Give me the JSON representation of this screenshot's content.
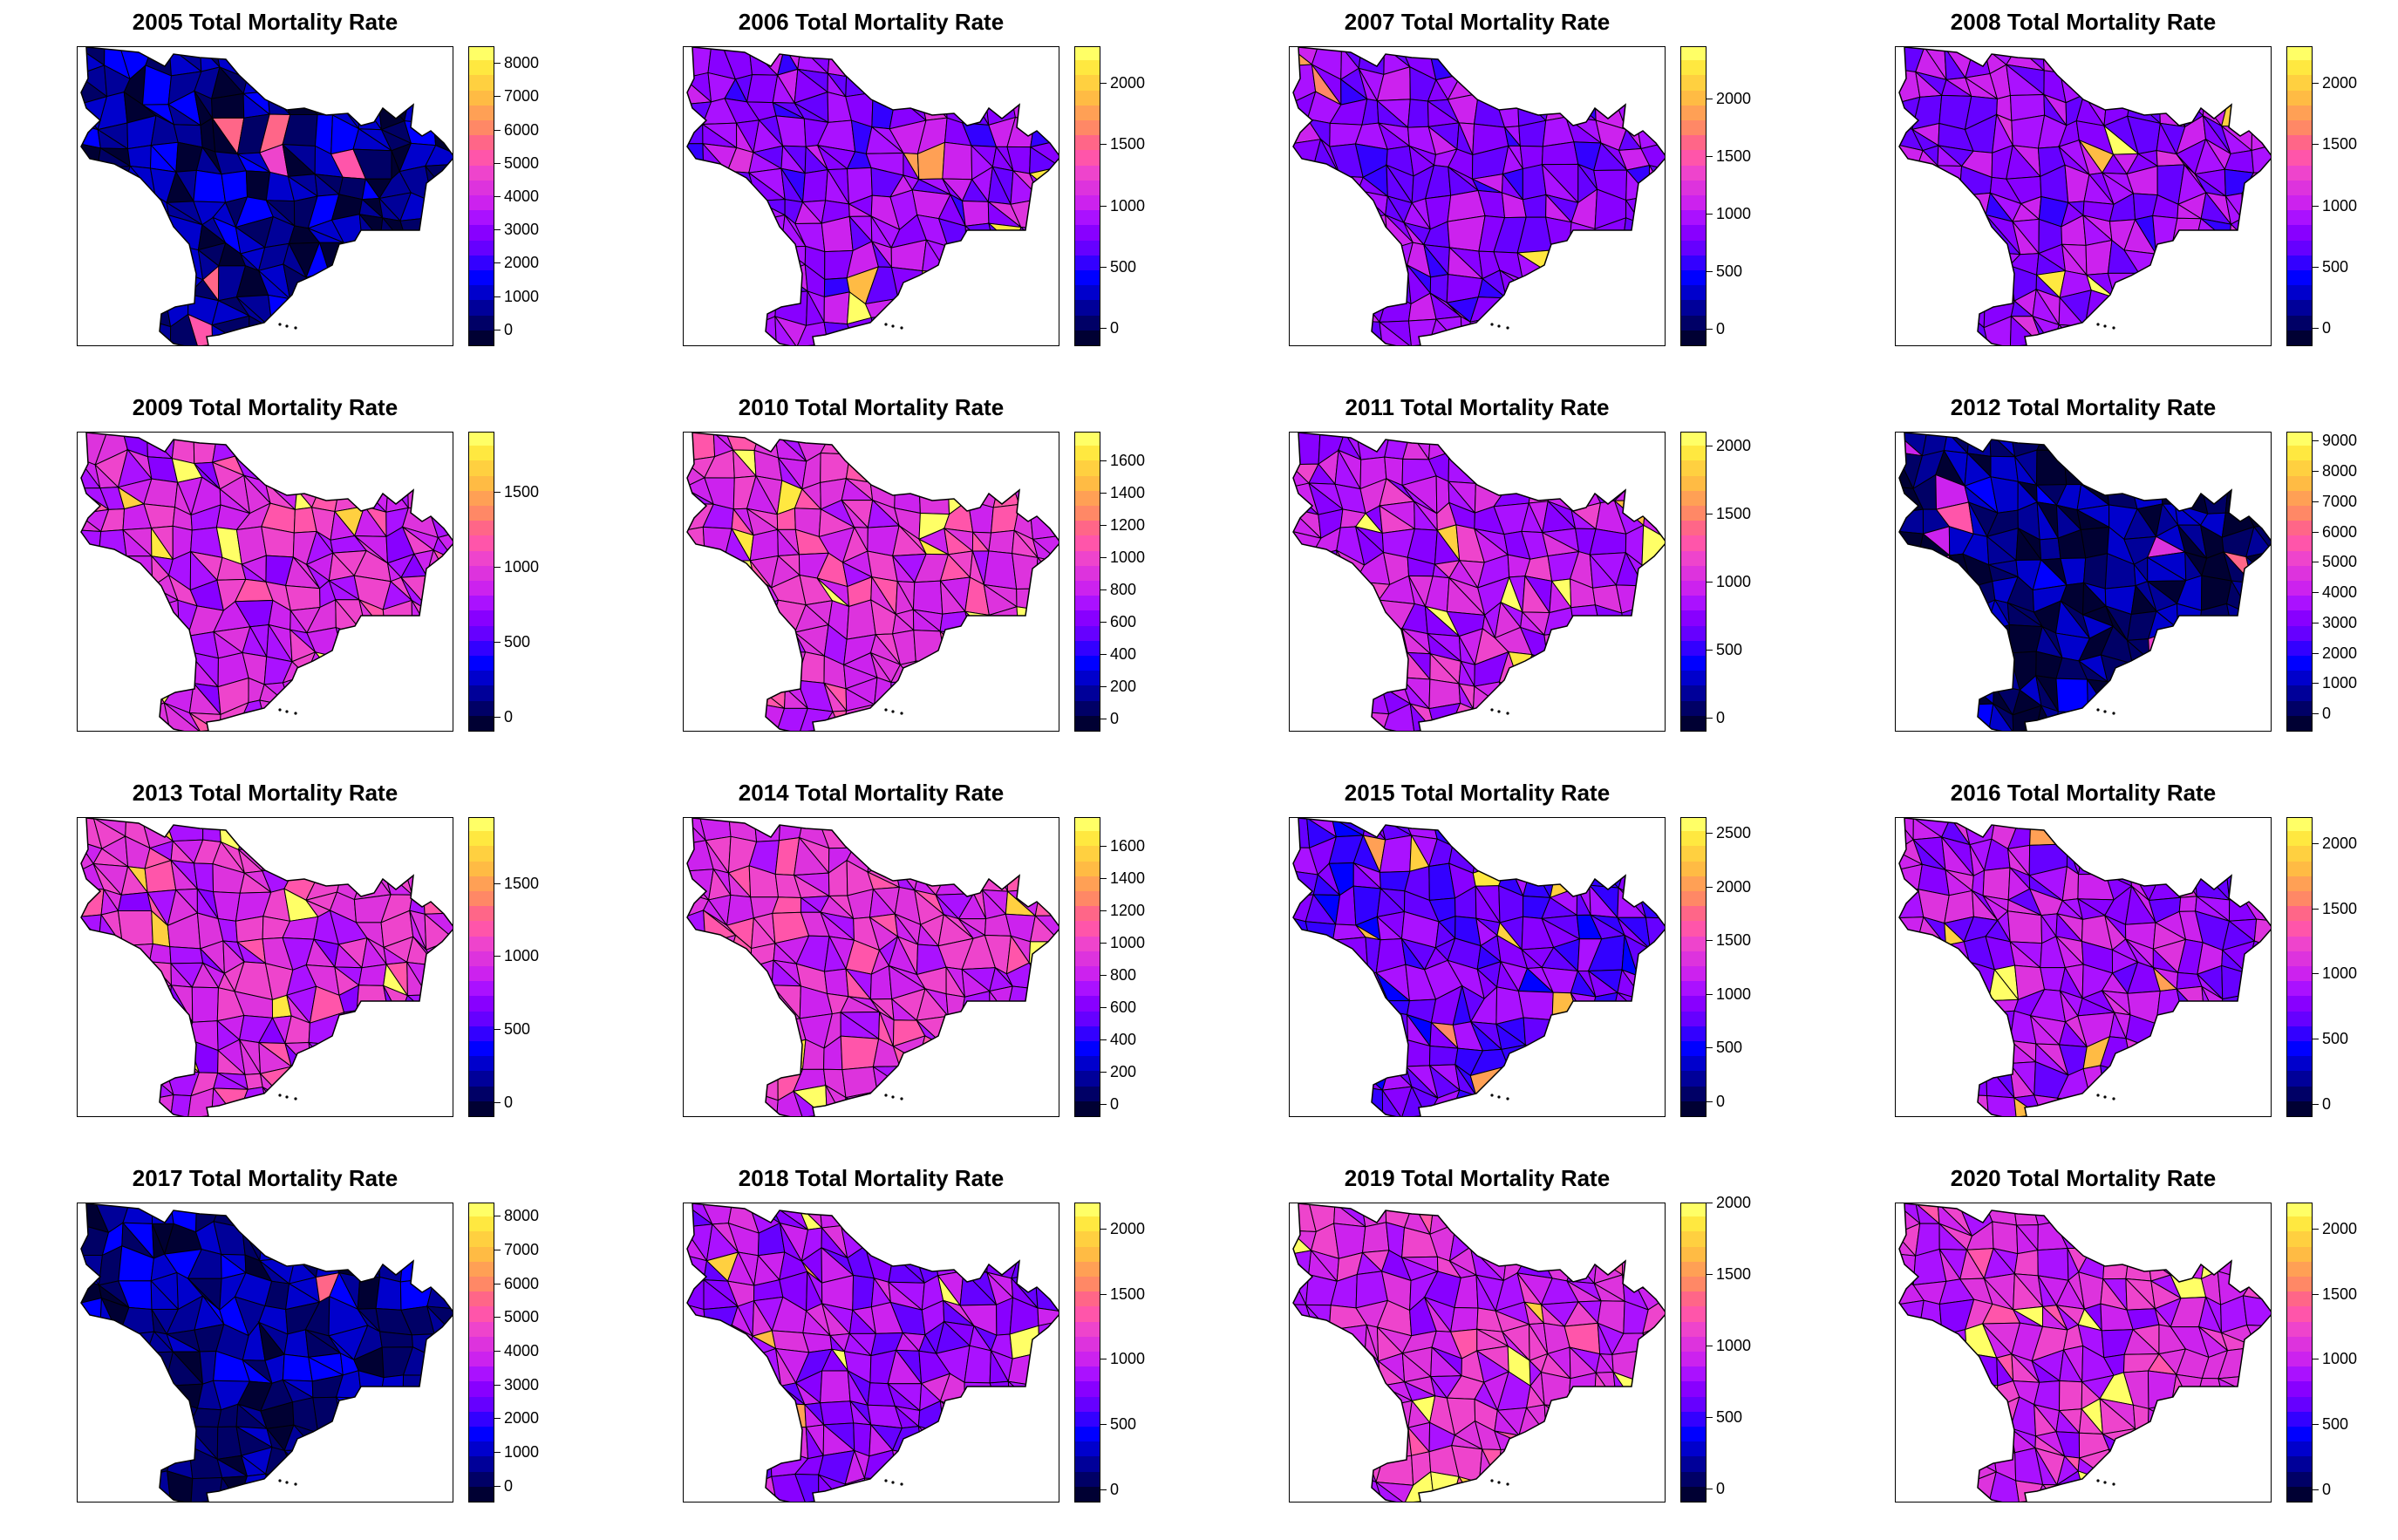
{
  "palette": [
    "#000033",
    "#000066",
    "#000099",
    "#0000CC",
    "#0000FF",
    "#3300FF",
    "#6600FF",
    "#8800FF",
    "#AA11FF",
    "#CC22EE",
    "#DD33DD",
    "#EE44CC",
    "#FF55AA",
    "#FF6688",
    "#FF8866",
    "#FFA055",
    "#FFBB44",
    "#FFD040",
    "#FFE840",
    "#FFFF66"
  ],
  "panels": [
    {
      "title": "2005 Total Mortality Rate",
      "range": [
        -500,
        8500
      ],
      "ticks": [
        "0",
        "1000",
        "2000",
        "3000",
        "4000",
        "5000",
        "6000",
        "7000",
        "8000"
      ],
      "level": 0.12
    },
    {
      "title": "2006 Total Mortality Rate",
      "range": [
        -150,
        2300
      ],
      "ticks": [
        "0",
        "500",
        "1000",
        "1500",
        "2000"
      ],
      "level": 0.4
    },
    {
      "title": "2007 Total Mortality Rate",
      "range": [
        -150,
        2450
      ],
      "ticks": [
        "0",
        "500",
        "1000",
        "1500",
        "2000"
      ],
      "level": 0.38
    },
    {
      "title": "2008 Total Mortality Rate",
      "range": [
        -150,
        2300
      ],
      "ticks": [
        "0",
        "500",
        "1000",
        "1500",
        "2000"
      ],
      "level": 0.4
    },
    {
      "title": "2009 Total Mortality Rate",
      "range": [
        -100,
        1900
      ],
      "ticks": [
        "0",
        "500",
        "1000",
        "1500"
      ],
      "level": 0.5
    },
    {
      "title": "2010 Total Mortality Rate",
      "range": [
        -80,
        1780
      ],
      "ticks": [
        "0",
        "200",
        "400",
        "600",
        "800",
        "1000",
        "1200",
        "1400",
        "1600"
      ],
      "level": 0.52
    },
    {
      "title": "2011 Total Mortality Rate",
      "range": [
        -100,
        2100
      ],
      "ticks": [
        "0",
        "500",
        "1000",
        "1500",
        "2000"
      ],
      "level": 0.46
    },
    {
      "title": "2012 Total Mortality Rate",
      "range": [
        -600,
        9300
      ],
      "ticks": [
        "0",
        "1000",
        "2000",
        "3000",
        "4000",
        "5000",
        "6000",
        "7000",
        "8000",
        "9000"
      ],
      "level": 0.1
    },
    {
      "title": "2013 Total Mortality Rate",
      "range": [
        -100,
        1950
      ],
      "ticks": [
        "0",
        "500",
        "1000",
        "1500"
      ],
      "level": 0.5
    },
    {
      "title": "2014 Total Mortality Rate",
      "range": [
        -80,
        1780
      ],
      "ticks": [
        "0",
        "200",
        "400",
        "600",
        "800",
        "1000",
        "1200",
        "1400",
        "1600"
      ],
      "level": 0.52
    },
    {
      "title": "2015 Total Mortality Rate",
      "range": [
        -150,
        2650
      ],
      "ticks": [
        "0",
        "500",
        "1000",
        "1500",
        "2000",
        "2500"
      ],
      "level": 0.34
    },
    {
      "title": "2016 Total Mortality Rate",
      "range": [
        -100,
        2200
      ],
      "ticks": [
        "0",
        "500",
        "1000",
        "1500",
        "2000"
      ],
      "level": 0.42
    },
    {
      "title": "2017 Total Mortality Rate",
      "range": [
        -500,
        8400
      ],
      "ticks": [
        "0",
        "1000",
        "2000",
        "3000",
        "4000",
        "5000",
        "6000",
        "7000",
        "8000"
      ],
      "level": 0.12
    },
    {
      "title": "2018 Total Mortality Rate",
      "range": [
        -100,
        2200
      ],
      "ticks": [
        "0",
        "500",
        "1000",
        "1500",
        "2000"
      ],
      "level": 0.42
    },
    {
      "title": "2019 Total Mortality Rate",
      "range": [
        -100,
        2000
      ],
      "ticks": [
        "0",
        "500",
        "1000",
        "1500",
        "2000"
      ],
      "level": 0.5
    },
    {
      "title": "2020 Total Mortality Rate",
      "range": [
        -100,
        2200
      ],
      "ticks": [
        "0",
        "500",
        "1000",
        "1500",
        "2000"
      ],
      "level": 0.5
    }
  ]
}
